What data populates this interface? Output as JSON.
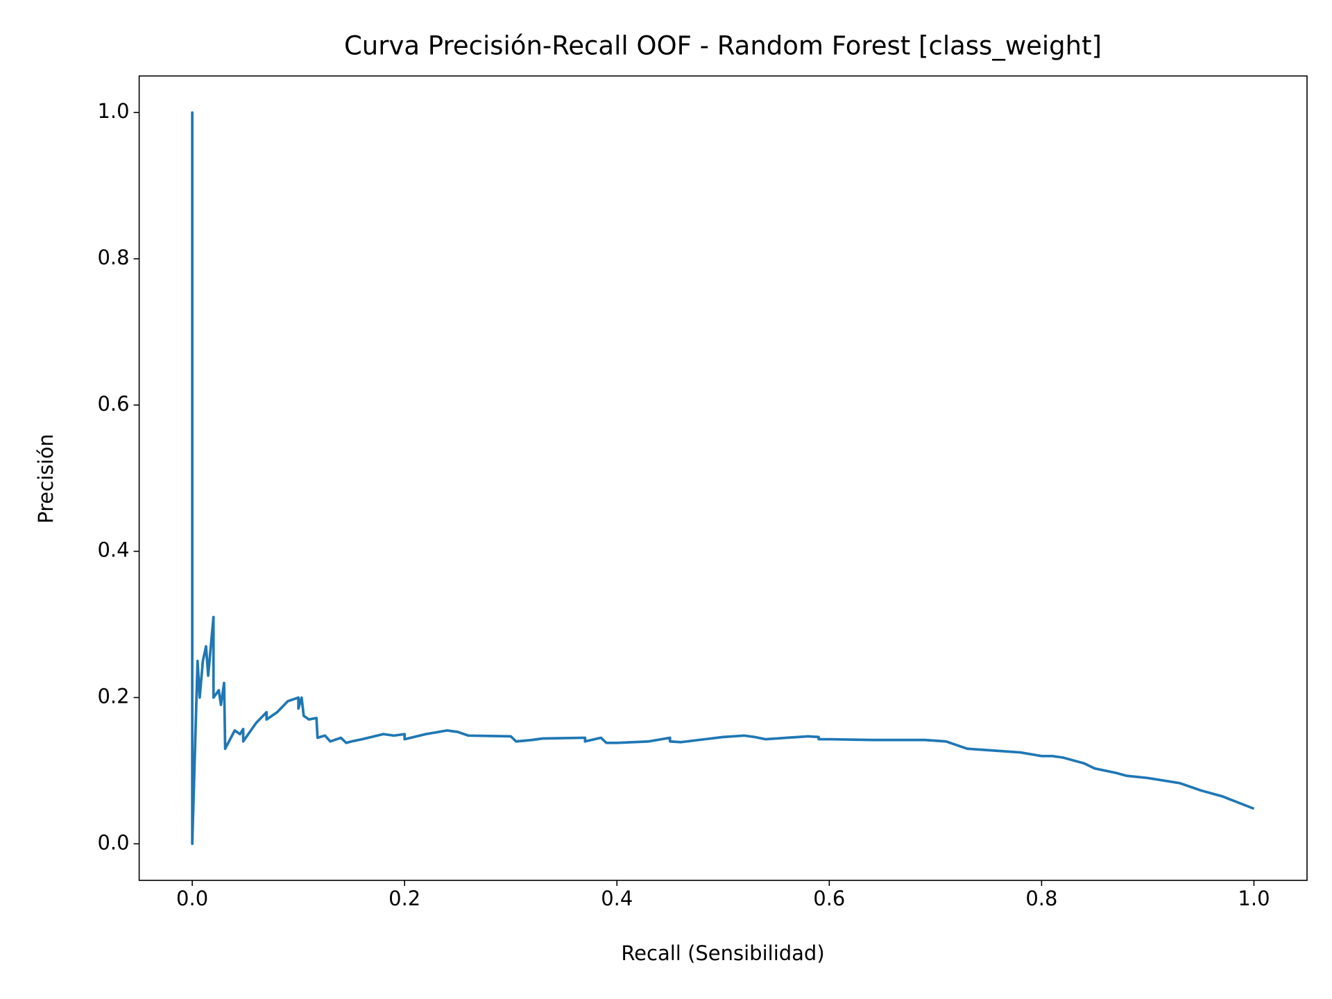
{
  "chart_data": {
    "type": "line",
    "title": "Curva Precisión-Recall OOF - Random Forest [class_weight]",
    "xlabel": "Recall (Sensibilidad)",
    "ylabel": "Precisión",
    "xlim": [
      -0.05,
      1.05
    ],
    "ylim": [
      -0.05,
      1.05
    ],
    "xticks": [
      {
        "value": 0,
        "label": "0.0"
      },
      0.2,
      0.4,
      0.6,
      0.8,
      {
        "value": 1,
        "label": "1.0"
      }
    ],
    "yticks": [
      {
        "value": 0,
        "label": "0.0"
      },
      0.2,
      0.4,
      0.6,
      0.8,
      {
        "value": 1,
        "label": "1.0"
      }
    ],
    "grid": false,
    "series": [
      {
        "color": "#1f77b4",
        "x": [
          0,
          0,
          0,
          0.005,
          0.007,
          0.01,
          0.013,
          0.015,
          0.02,
          0.02,
          0.025,
          0.027,
          0.03,
          0.031,
          0.04,
          0.045,
          0.048,
          0.048,
          0.06,
          0.07,
          0.07,
          0.08,
          0.09,
          0.1,
          0.1,
          0.103,
          0.105,
          0.11,
          0.117,
          0.118,
          0.125,
          0.13,
          0.14,
          0.145,
          0.15,
          0.16,
          0.18,
          0.19,
          0.2,
          0.2,
          0.22,
          0.24,
          0.25,
          0.26,
          0.3,
          0.305,
          0.32,
          0.33,
          0.37,
          0.37,
          0.385,
          0.39,
          0.4,
          0.43,
          0.45,
          0.45,
          0.46,
          0.5,
          0.52,
          0.53,
          0.54,
          0.58,
          0.59,
          0.59,
          0.6,
          0.64,
          0.69,
          0.71,
          0.72,
          0.73,
          0.75,
          0.78,
          0.8,
          0.81,
          0.82,
          0.83,
          0.84,
          0.85,
          0.87,
          0.88,
          0.9,
          0.93,
          0.95,
          0.97,
          1.0
        ],
        "values": [
          0,
          1.0,
          0,
          0.25,
          0.2,
          0.25,
          0.27,
          0.23,
          0.31,
          0.2,
          0.21,
          0.19,
          0.22,
          0.13,
          0.155,
          0.15,
          0.157,
          0.14,
          0.165,
          0.18,
          0.17,
          0.18,
          0.195,
          0.2,
          0.185,
          0.2,
          0.175,
          0.17,
          0.172,
          0.145,
          0.148,
          0.14,
          0.145,
          0.138,
          0.14,
          0.143,
          0.15,
          0.148,
          0.15,
          0.143,
          0.15,
          0.155,
          0.153,
          0.148,
          0.147,
          0.14,
          0.142,
          0.144,
          0.145,
          0.14,
          0.145,
          0.138,
          0.138,
          0.14,
          0.145,
          0.14,
          0.139,
          0.146,
          0.148,
          0.146,
          0.143,
          0.147,
          0.146,
          0.143,
          0.143,
          0.142,
          0.142,
          0.14,
          0.135,
          0.13,
          0.128,
          0.125,
          0.12,
          0.12,
          0.118,
          0.114,
          0.11,
          0.103,
          0.097,
          0.093,
          0.09,
          0.083,
          0.073,
          0.065,
          0.048
        ]
      }
    ]
  }
}
